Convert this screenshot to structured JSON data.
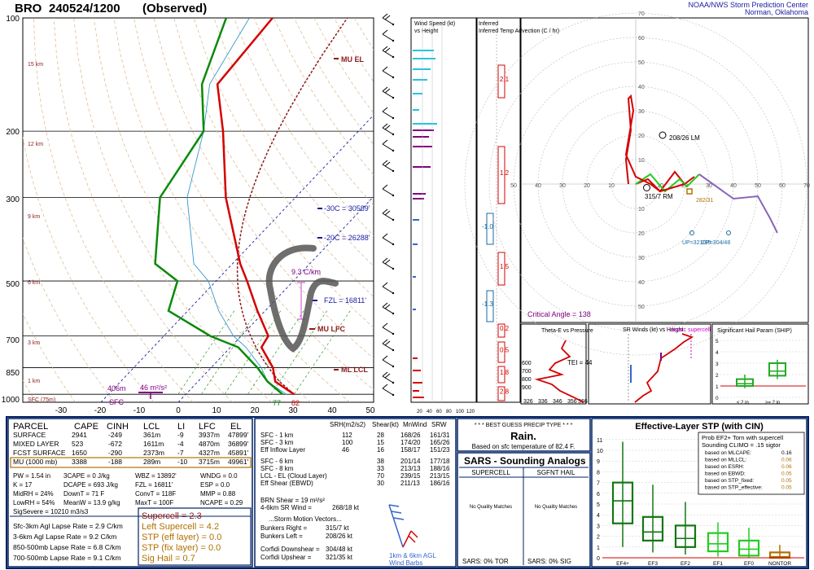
{
  "header": {
    "station": "BRO",
    "time": "240524/1200",
    "status": "(Observed)",
    "org_line1": "NOAA/NWS Storm Prediction Center",
    "org_line2": "Norman, Oklahoma"
  },
  "skewt": {
    "pressure_labels": [
      "100",
      "200",
      "300",
      "500",
      "700",
      "850",
      "1000"
    ],
    "temp_labels": [
      "-30",
      "-20",
      "-10",
      "0",
      "10",
      "20",
      "30",
      "40",
      "50"
    ],
    "km_labels": [
      "15 km",
      "12 km",
      "9 km",
      "6 km",
      "3 km",
      "1 km",
      "SFC (75m)"
    ],
    "annotations": {
      "mu_el": "MU EL",
      "mu_lfc": "MU LFC",
      "ml_lcl": "ML LCL",
      "m30c": "-30C = 30589'",
      "m20c": "-20C = 26288'",
      "fzl": "FZL = 16811'",
      "lapse": "9.3 C/km",
      "pbl_h": "406m",
      "pbl_e": "46 m²/s²",
      "sfc": "SFC",
      "td_sfc": "77",
      "t_sfc": "82"
    }
  },
  "panels": {
    "wind_speed_title": "Wind Speed (kt)",
    "wind_speed_sub": "vs Height",
    "wind_axis": [
      "20",
      "40",
      "60",
      "80",
      "100",
      "120"
    ],
    "temp_adv_title": "Inferred Temp Advection (C / hr)",
    "adv_values": [
      "2.1",
      "1.2",
      "-1.0",
      "1.5",
      "-1.3",
      "0.2",
      "0.5",
      "1.8",
      "2.8"
    ],
    "hodo_labels": {
      "lm": "208/26 LM",
      "rm": "315/7 RM",
      "mean": "282/31",
      "up": "UP=321/35",
      "dp": "DP=304/48",
      "critical": "Critical Angle = 138"
    },
    "hodo_axis_x": [
      "50",
      "40",
      "30",
      "20",
      "10",
      "10",
      "20",
      "30",
      "40",
      "50",
      "60",
      "70"
    ],
    "hodo_axis_y": [
      "70",
      "60",
      "50",
      "40",
      "30",
      "20",
      "10",
      "10",
      "20",
      "30",
      "40",
      "50"
    ],
    "theta_title": "Theta-E vs Pressure",
    "theta_tei": "TEI = 44",
    "theta_x": [
      "326",
      "336",
      "346",
      "356",
      "366"
    ],
    "theta_p": [
      "600",
      "700",
      "800",
      "900"
    ],
    "sr_title": "SR Winds (kt) vs Height",
    "sr_classic": "classic supercell",
    "ship_title": "Significant Hail Param (SHIP)",
    "ship_lt2": "< 2 in",
    "ship_ge2": ">= 2 in"
  },
  "parcel_table": {
    "headers": [
      "PARCEL",
      "CAPE",
      "CINH",
      "LCL",
      "LI",
      "LFC",
      "EL"
    ],
    "rows": [
      [
        "SURFACE",
        "2941",
        "-249",
        "361m",
        "-9",
        "3937m",
        "47899'"
      ],
      [
        "MIXED LAYER",
        "523",
        "-672",
        "1611m",
        "-4",
        "4870m",
        "36899'"
      ],
      [
        "FCST SURFACE",
        "1650",
        "-290",
        "2373m",
        "-7",
        "4327m",
        "45891'"
      ],
      [
        "MU (1000 mb)",
        "3388",
        "-188",
        "289m",
        "-10",
        "3715m",
        "49961'"
      ]
    ]
  },
  "indices": {
    "col1": [
      "PW = 1.54 in",
      "K = 17",
      "MidRH = 24%",
      "LowRH = 54%"
    ],
    "col2": [
      "3CAPE = 0 J/kg",
      "DCAPE = 693 J/kg",
      "DownT = 71 F",
      "MeanW = 13.9 g/kg"
    ],
    "col3": [
      "WBZ = 13892'",
      "FZL = 16811'",
      "ConvT = 118F",
      "MaxT = 100F"
    ],
    "col4": [
      "WNDG = 0.0",
      "ESP = 0.0",
      "MMP = 0.88",
      "NCAPE = 0.29"
    ],
    "sigsevere": "SigSevere = 10210 m3/s3",
    "lapse": [
      "Sfc-3km Agl Lapse Rate = 2.9 C/km",
      "3-6km Agl Lapse Rate = 9.2 C/km",
      "850-500mb Lapse Rate = 6.8 C/km",
      "700-500mb Lapse Rate = 9.1 C/km"
    ],
    "composite": [
      "Supercell = 2.3",
      "Left Supercell = 4.2",
      "STP (eff layer) = 0.0",
      "STP (fix layer) = 0.0",
      "Sig Hail = 0.7"
    ]
  },
  "kinematics": {
    "headers": [
      "SRH(m2/s2)",
      "Shear(kt)",
      "MnWind",
      "SRW"
    ],
    "rows": [
      [
        "SFC - 1 km",
        "112",
        "28",
        "168/26",
        "161/31"
      ],
      [
        "SFC - 3 km",
        "100",
        "15",
        "174/20",
        "165/26"
      ],
      [
        "Eff Inflow Layer",
        "46",
        "16",
        "158/17",
        "151/23"
      ],
      [
        "SFC - 6 km",
        "",
        "38",
        "201/14",
        "177/18"
      ],
      [
        "SFC - 8 km",
        "",
        "33",
        "213/13",
        "188/16"
      ],
      [
        "LCL - EL (Cloud Layer)",
        "",
        "70",
        "239/15",
        "213/15"
      ],
      [
        "Eff Shear (EBWD)",
        "",
        "30",
        "211/13",
        "186/16"
      ]
    ],
    "brn": "BRN Shear = 19 m²/s²",
    "sr_wind": "4-6km SR Wind =",
    "sr_wind_val": "268/18 kt",
    "smv_title": "...Storm Motion Vectors...",
    "bunkers_right": "Bunkers Right =",
    "bunkers_right_val": "315/7 kt",
    "bunkers_left": "Bunkers Left =",
    "bunkers_left_val": "208/26 kt",
    "corfidi_down": "Corfidi Downshear =",
    "corfidi_down_val": "304/48 kt",
    "corfidi_up": "Corfidi Upshear =",
    "corfidi_up_val": "321/35 kt",
    "barbs_line1": "1km & 6km AGL",
    "barbs_line2": "Wind Barbs"
  },
  "precip": {
    "title": "* * * BEST GUESS PRECIP TYPE * * *",
    "value": "Rain.",
    "basis": "Based on sfc temperature of 82.4 F."
  },
  "sars": {
    "title": "SARS - Sounding Analogs",
    "col1": "SUPERCELL",
    "col2": "SGFNT HAIL",
    "no_match1": "No Quality Matches",
    "no_match2": "No Quality Matches",
    "foot1": "SARS:  0% TOR",
    "foot2": "SARS:  0% SIG"
  },
  "stp": {
    "title": "Effective-Layer STP (with CIN)",
    "prob_title1": "Prob EF2+ Torn with supercell",
    "prob_title2": "Sounding CLIMO = .15 sigtor",
    "rows": [
      [
        "based on MLCAPE:",
        "0.16"
      ],
      [
        "based on MLLCL:",
        "0.06"
      ],
      [
        "based on ESRH:",
        "0.06"
      ],
      [
        "based on EBWD:",
        "0.05"
      ],
      [
        "based on STP_fixed:",
        "0.05"
      ],
      [
        "based on STP_effective:",
        "0.05"
      ]
    ],
    "categories": [
      "EF4+",
      "EF3",
      "EF2",
      "EF1",
      "EF0",
      "NONTOR"
    ],
    "y_ticks": [
      "0",
      "1",
      "2",
      "3",
      "4",
      "5",
      "6",
      "7",
      "8",
      "9",
      "10",
      "11"
    ]
  },
  "colors": {
    "temp": "#d40000",
    "dewpoint": "#0a8a0a",
    "parcel": "#8b1a1a",
    "purple": "#800080",
    "cyan": "#22c5e0",
    "blue": "#1a1aa0",
    "navy": "#002060",
    "orange": "#b07000"
  },
  "chart_data": [
    {
      "type": "line",
      "title": "BRO 240524/1200 (Observed)",
      "xlabel": "Temperature (C)",
      "ylabel": "Pressure (mb)",
      "xlim": [
        -30,
        50
      ],
      "ylim": [
        1000,
        100
      ],
      "series": [
        {
          "name": "Temperature",
          "x": [
            28,
            20,
            16,
            8,
            7,
            -2,
            -12,
            -18,
            -38,
            -55,
            -68,
            -70
          ],
          "y": [
            1000,
            925,
            850,
            750,
            700,
            600,
            500,
            450,
            300,
            200,
            150,
            100
          ]
        },
        {
          "name": "Dewpoint",
          "x": [
            25,
            18,
            12,
            2,
            -8,
            -25,
            -30,
            -40,
            -55,
            -60,
            -72,
            -82
          ],
          "y": [
            1000,
            925,
            850,
            750,
            700,
            600,
            500,
            450,
            300,
            200,
            150,
            100
          ]
        }
      ]
    },
    {
      "type": "bar",
      "title": "Significant Hail Param (SHIP)",
      "categories": [
        "< 2 in",
        ">= 2 in"
      ],
      "series": [
        {
          "values": [
            1.2,
            2.3
          ]
        }
      ]
    },
    {
      "type": "bar",
      "title": "Effective-Layer STP (with CIN)",
      "categories": [
        "EF4+",
        "EF3",
        "EF2",
        "EF1",
        "EF0",
        "NONTOR"
      ],
      "series": [
        {
          "values": [
            5.3,
            2.4,
            1.8,
            1.3,
            0.8,
            0.1
          ]
        }
      ]
    }
  ]
}
